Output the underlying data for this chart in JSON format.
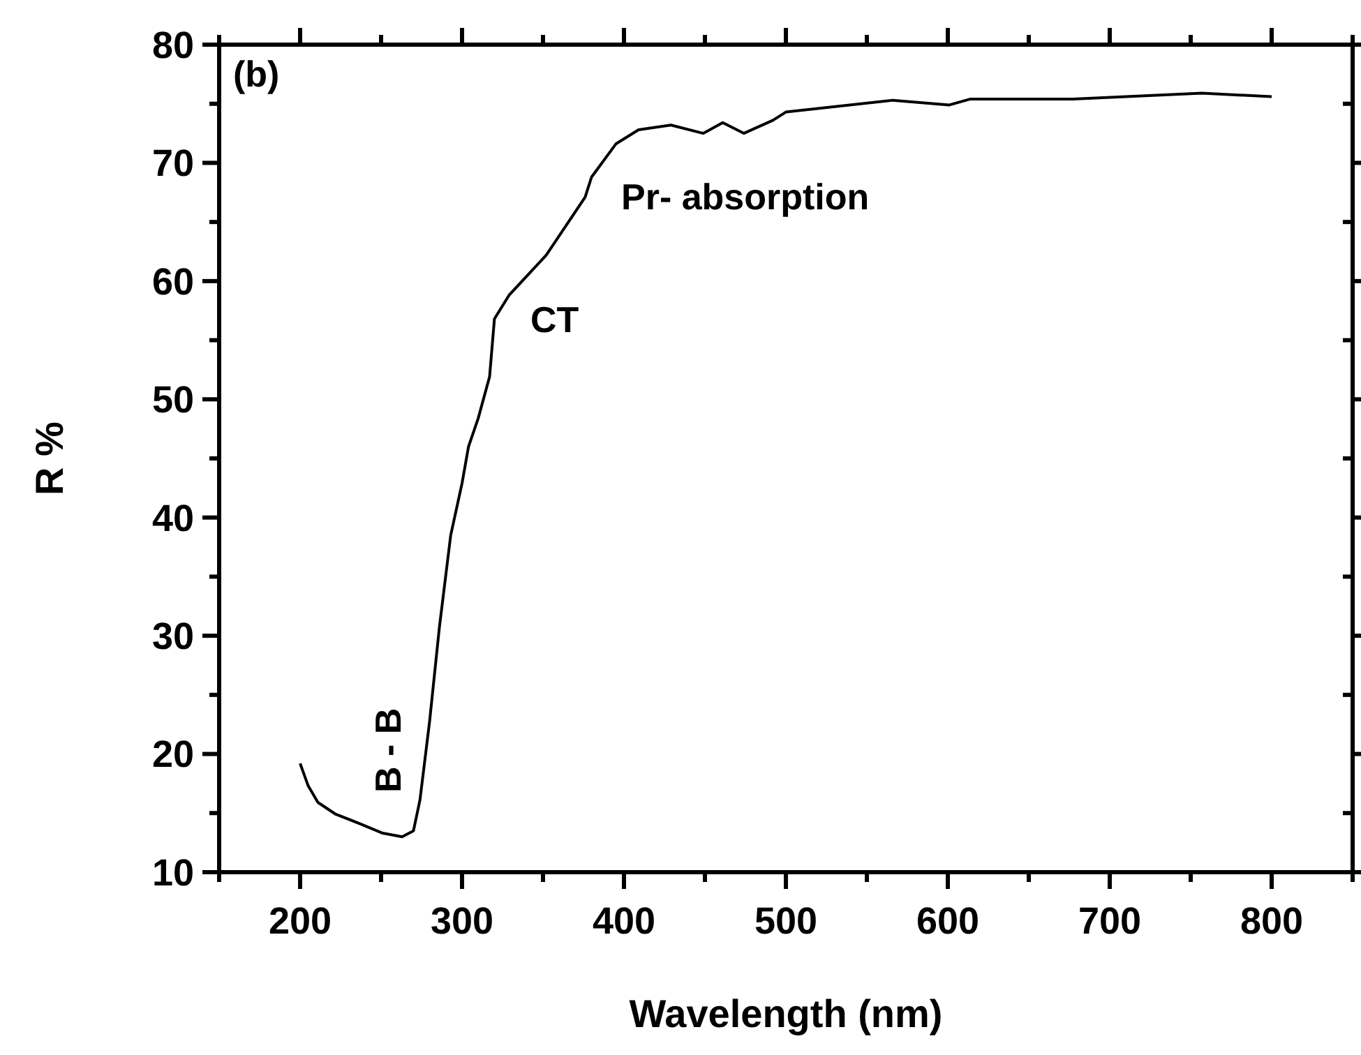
{
  "chart_data": {
    "type": "line",
    "xlabel": "Wavelength (nm)",
    "ylabel": "R %",
    "annotations": [
      "(b)",
      "B - B",
      "CT",
      "Pr- absorption"
    ],
    "x": [
      200,
      205,
      211,
      222,
      237,
      251,
      263,
      270,
      274,
      280,
      286,
      293,
      300,
      304,
      310,
      317,
      320,
      329,
      352,
      376,
      380,
      395,
      409,
      429,
      449,
      461,
      474,
      492,
      500,
      566,
      601,
      614,
      677,
      757,
      800
    ],
    "series": [
      {
        "color": "#000000",
        "values": [
          19.2,
          17.3,
          15.9,
          14.9,
          14.1,
          13.3,
          13.0,
          13.5,
          16.1,
          22.8,
          30.7,
          38.5,
          42.9,
          46.0,
          48.4,
          51.9,
          56.8,
          58.8,
          62.2,
          67.1,
          68.8,
          71.6,
          72.8,
          73.2,
          72.5,
          73.4,
          72.5,
          73.6,
          74.3,
          75.3,
          74.9,
          75.4,
          75.4,
          75.9,
          75.6
        ]
      }
    ],
    "xlim": [
      150,
      850
    ],
    "xticks": [
      200,
      300,
      400,
      500,
      600,
      700,
      800
    ],
    "ylim": [
      10,
      80
    ],
    "yticks": [
      10,
      20,
      30,
      40,
      50,
      60,
      70,
      80
    ],
    "grid": false,
    "marker": "none",
    "line_style": "solid"
  }
}
